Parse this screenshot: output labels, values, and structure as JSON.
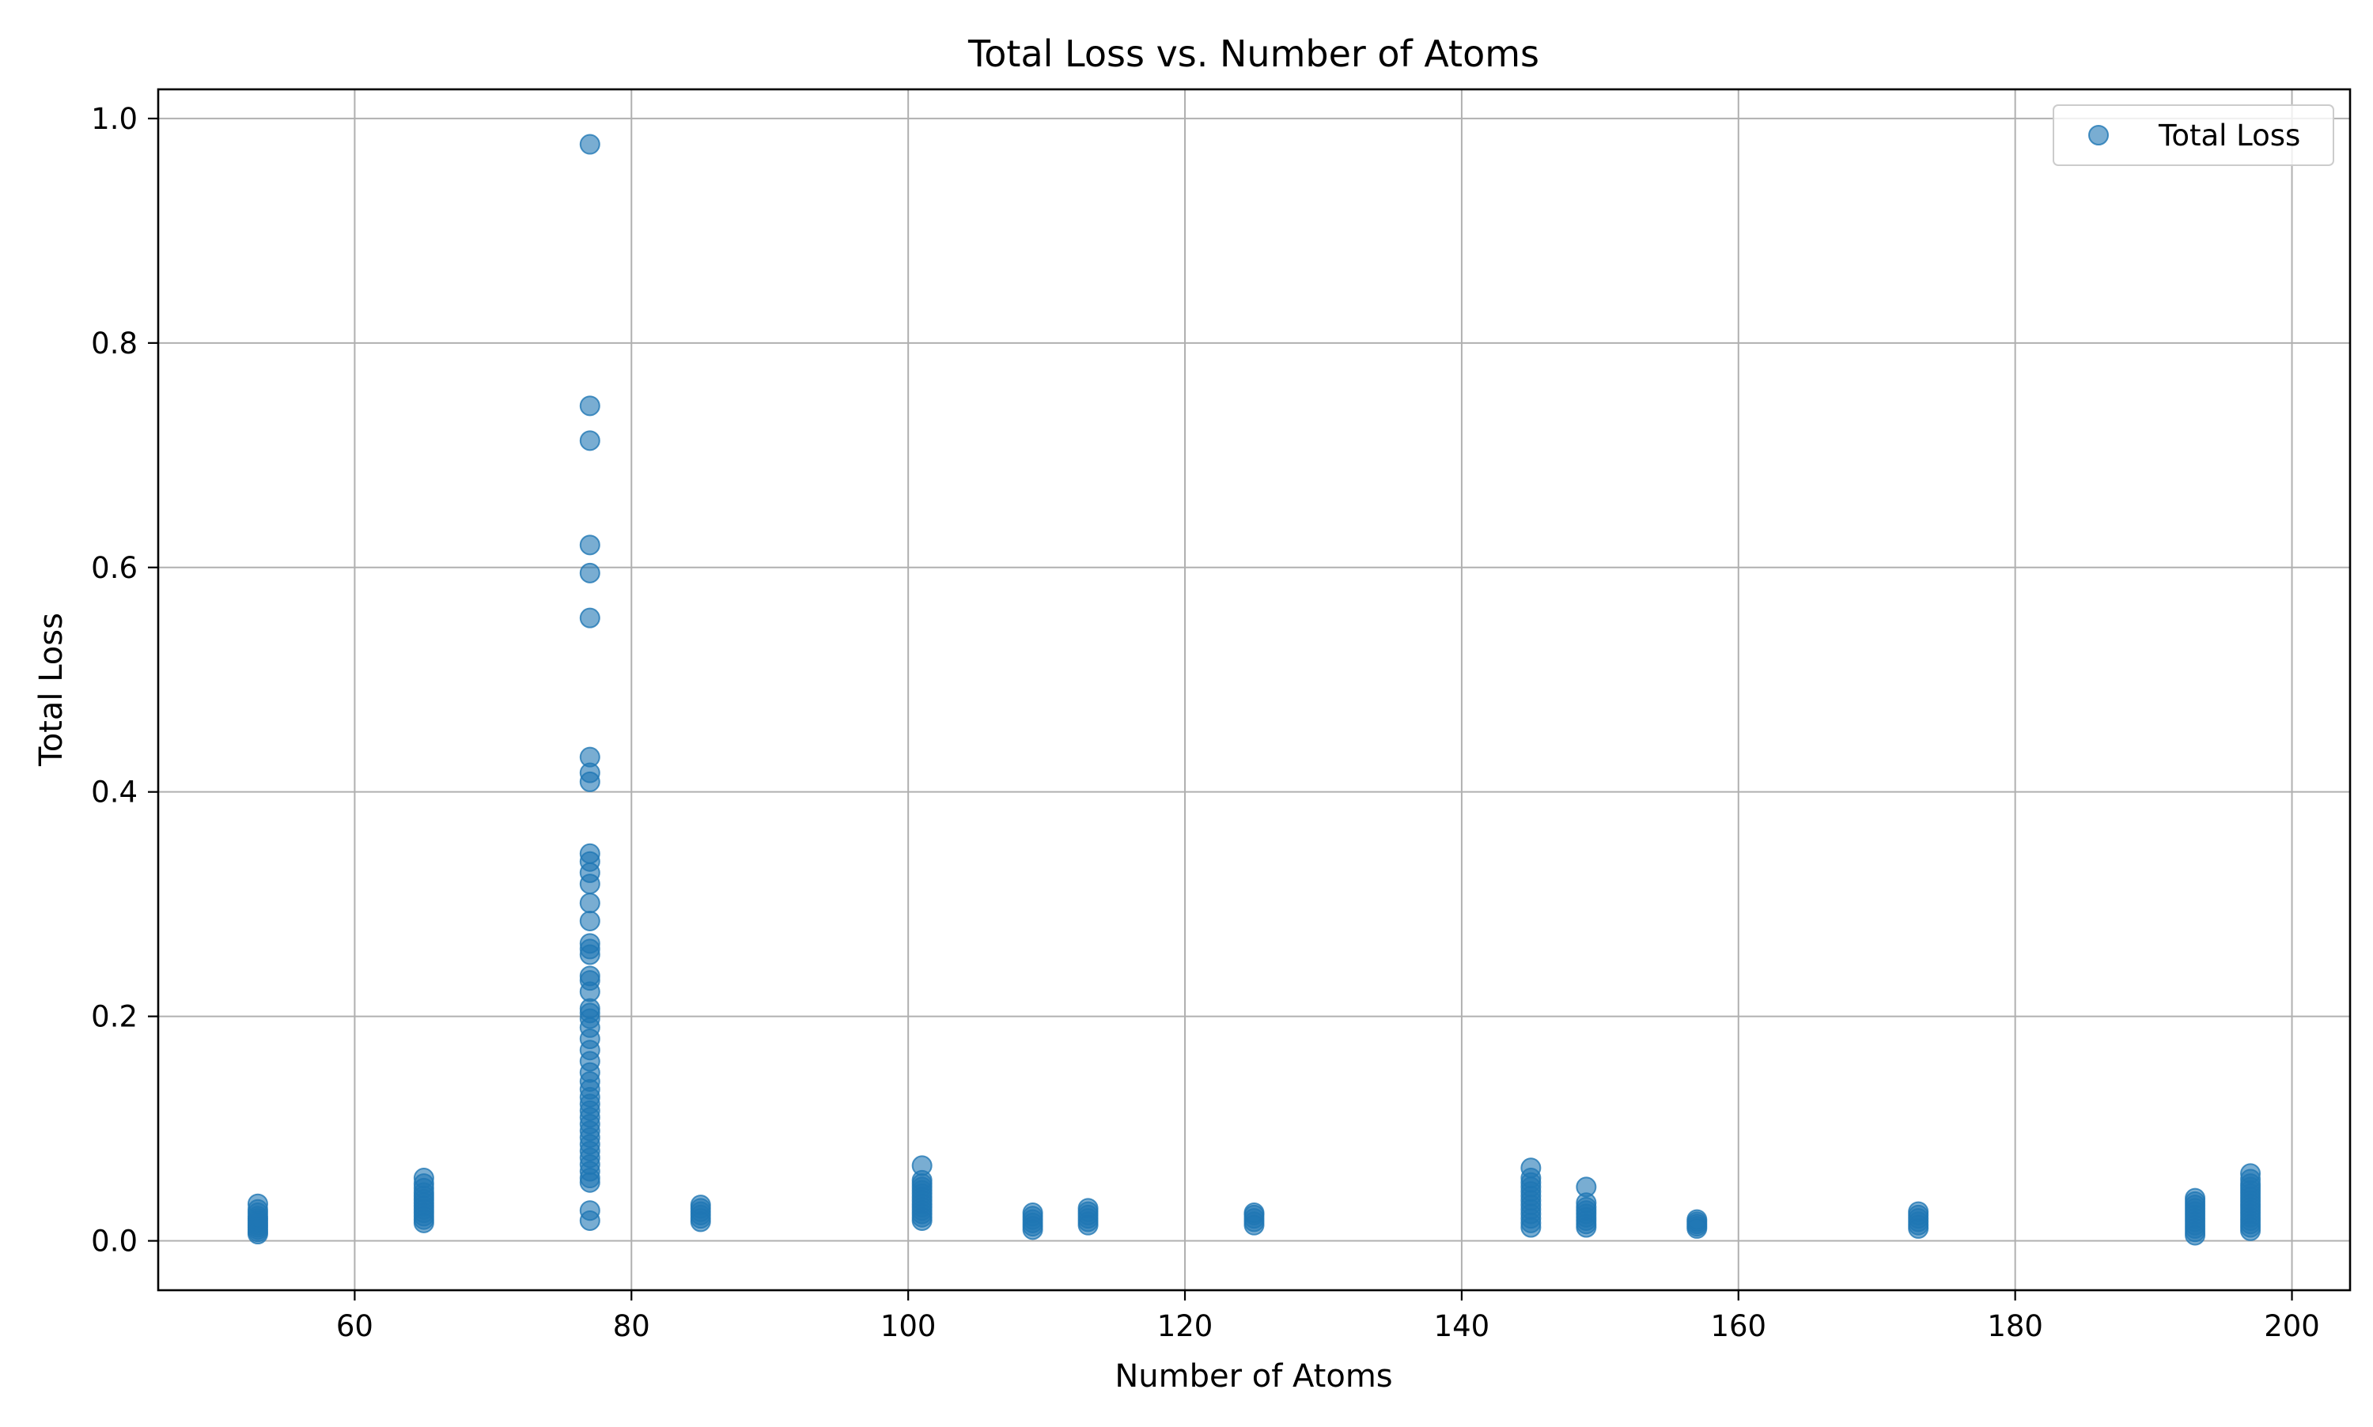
{
  "chart_data": {
    "type": "scatter",
    "title": "Total Loss vs. Number of Atoms",
    "xlabel": "Number of Atoms",
    "ylabel": "Total Loss",
    "xlim": [
      45.8,
      204.2
    ],
    "ylim": [
      -0.044,
      1.026
    ],
    "xticks": [
      60,
      80,
      100,
      120,
      140,
      160,
      180,
      200
    ],
    "xtick_labels": [
      "60",
      "80",
      "100",
      "120",
      "140",
      "160",
      "180",
      "200"
    ],
    "yticks": [
      0.0,
      0.2,
      0.4,
      0.6,
      0.8,
      1.0
    ],
    "ytick_labels": [
      "0.0",
      "0.2",
      "0.4",
      "0.6",
      "0.8",
      "1.0"
    ],
    "grid": true,
    "legend": {
      "position": "top-right",
      "entries": [
        "Total Loss"
      ]
    },
    "colors": {
      "series": "#1f77b4"
    },
    "series": [
      {
        "name": "Total Loss",
        "color": "#1f77b4",
        "alpha": 0.6,
        "points": [
          [
            53,
            0.006
          ],
          [
            53,
            0.008
          ],
          [
            53,
            0.01
          ],
          [
            53,
            0.012
          ],
          [
            53,
            0.014
          ],
          [
            53,
            0.016
          ],
          [
            53,
            0.018
          ],
          [
            53,
            0.02
          ],
          [
            53,
            0.022
          ],
          [
            53,
            0.025
          ],
          [
            53,
            0.028
          ],
          [
            53,
            0.033
          ],
          [
            65,
            0.016
          ],
          [
            65,
            0.019
          ],
          [
            65,
            0.022
          ],
          [
            65,
            0.025
          ],
          [
            65,
            0.028
          ],
          [
            65,
            0.031
          ],
          [
            65,
            0.034
          ],
          [
            65,
            0.037
          ],
          [
            65,
            0.04
          ],
          [
            65,
            0.043
          ],
          [
            65,
            0.047
          ],
          [
            65,
            0.051
          ],
          [
            65,
            0.056
          ],
          [
            77,
            0.977
          ],
          [
            77,
            0.744
          ],
          [
            77,
            0.713
          ],
          [
            77,
            0.62
          ],
          [
            77,
            0.595
          ],
          [
            77,
            0.555
          ],
          [
            77,
            0.431
          ],
          [
            77,
            0.417
          ],
          [
            77,
            0.409
          ],
          [
            77,
            0.345
          ],
          [
            77,
            0.338
          ],
          [
            77,
            0.328
          ],
          [
            77,
            0.318
          ],
          [
            77,
            0.301
          ],
          [
            77,
            0.285
          ],
          [
            77,
            0.265
          ],
          [
            77,
            0.26
          ],
          [
            77,
            0.255
          ],
          [
            77,
            0.236
          ],
          [
            77,
            0.232
          ],
          [
            77,
            0.222
          ],
          [
            77,
            0.207
          ],
          [
            77,
            0.203
          ],
          [
            77,
            0.198
          ],
          [
            77,
            0.19
          ],
          [
            77,
            0.18
          ],
          [
            77,
            0.17
          ],
          [
            77,
            0.16
          ],
          [
            77,
            0.15
          ],
          [
            77,
            0.142
          ],
          [
            77,
            0.135
          ],
          [
            77,
            0.128
          ],
          [
            77,
            0.122
          ],
          [
            77,
            0.116
          ],
          [
            77,
            0.11
          ],
          [
            77,
            0.104
          ],
          [
            77,
            0.098
          ],
          [
            77,
            0.092
          ],
          [
            77,
            0.086
          ],
          [
            77,
            0.08
          ],
          [
            77,
            0.074
          ],
          [
            77,
            0.068
          ],
          [
            77,
            0.062
          ],
          [
            77,
            0.056
          ],
          [
            77,
            0.052
          ],
          [
            77,
            0.027
          ],
          [
            77,
            0.018
          ],
          [
            85,
            0.017
          ],
          [
            85,
            0.02
          ],
          [
            85,
            0.023
          ],
          [
            85,
            0.026
          ],
          [
            85,
            0.029
          ],
          [
            85,
            0.032
          ],
          [
            101,
            0.018
          ],
          [
            101,
            0.021
          ],
          [
            101,
            0.024
          ],
          [
            101,
            0.027
          ],
          [
            101,
            0.03
          ],
          [
            101,
            0.033
          ],
          [
            101,
            0.036
          ],
          [
            101,
            0.039
          ],
          [
            101,
            0.042
          ],
          [
            101,
            0.045
          ],
          [
            101,
            0.048
          ],
          [
            101,
            0.051
          ],
          [
            101,
            0.054
          ],
          [
            101,
            0.067
          ],
          [
            109,
            0.01
          ],
          [
            109,
            0.013
          ],
          [
            109,
            0.016
          ],
          [
            109,
            0.019
          ],
          [
            109,
            0.022
          ],
          [
            109,
            0.025
          ],
          [
            113,
            0.014
          ],
          [
            113,
            0.017
          ],
          [
            113,
            0.02
          ],
          [
            113,
            0.023
          ],
          [
            113,
            0.026
          ],
          [
            113,
            0.029
          ],
          [
            125,
            0.014
          ],
          [
            125,
            0.017
          ],
          [
            125,
            0.02
          ],
          [
            125,
            0.023
          ],
          [
            125,
            0.025
          ],
          [
            145,
            0.012
          ],
          [
            145,
            0.016
          ],
          [
            145,
            0.02
          ],
          [
            145,
            0.024
          ],
          [
            145,
            0.028
          ],
          [
            145,
            0.032
          ],
          [
            145,
            0.036
          ],
          [
            145,
            0.04
          ],
          [
            145,
            0.044
          ],
          [
            145,
            0.048
          ],
          [
            145,
            0.052
          ],
          [
            145,
            0.056
          ],
          [
            145,
            0.065
          ],
          [
            149,
            0.012
          ],
          [
            149,
            0.015
          ],
          [
            149,
            0.018
          ],
          [
            149,
            0.021
          ],
          [
            149,
            0.024
          ],
          [
            149,
            0.027
          ],
          [
            149,
            0.03
          ],
          [
            149,
            0.034
          ],
          [
            149,
            0.048
          ],
          [
            157,
            0.011
          ],
          [
            157,
            0.013
          ],
          [
            157,
            0.015
          ],
          [
            157,
            0.017
          ],
          [
            157,
            0.019
          ],
          [
            173,
            0.011
          ],
          [
            173,
            0.014
          ],
          [
            173,
            0.017
          ],
          [
            173,
            0.02
          ],
          [
            173,
            0.023
          ],
          [
            173,
            0.026
          ],
          [
            193,
            0.005
          ],
          [
            193,
            0.008
          ],
          [
            193,
            0.011
          ],
          [
            193,
            0.014
          ],
          [
            193,
            0.017
          ],
          [
            193,
            0.02
          ],
          [
            193,
            0.023
          ],
          [
            193,
            0.026
          ],
          [
            193,
            0.029
          ],
          [
            193,
            0.032
          ],
          [
            193,
            0.035
          ],
          [
            193,
            0.038
          ],
          [
            197,
            0.009
          ],
          [
            197,
            0.012
          ],
          [
            197,
            0.015
          ],
          [
            197,
            0.018
          ],
          [
            197,
            0.021
          ],
          [
            197,
            0.024
          ],
          [
            197,
            0.027
          ],
          [
            197,
            0.03
          ],
          [
            197,
            0.033
          ],
          [
            197,
            0.036
          ],
          [
            197,
            0.039
          ],
          [
            197,
            0.042
          ],
          [
            197,
            0.045
          ],
          [
            197,
            0.048
          ],
          [
            197,
            0.051
          ],
          [
            197,
            0.055
          ],
          [
            197,
            0.06
          ]
        ]
      }
    ]
  }
}
